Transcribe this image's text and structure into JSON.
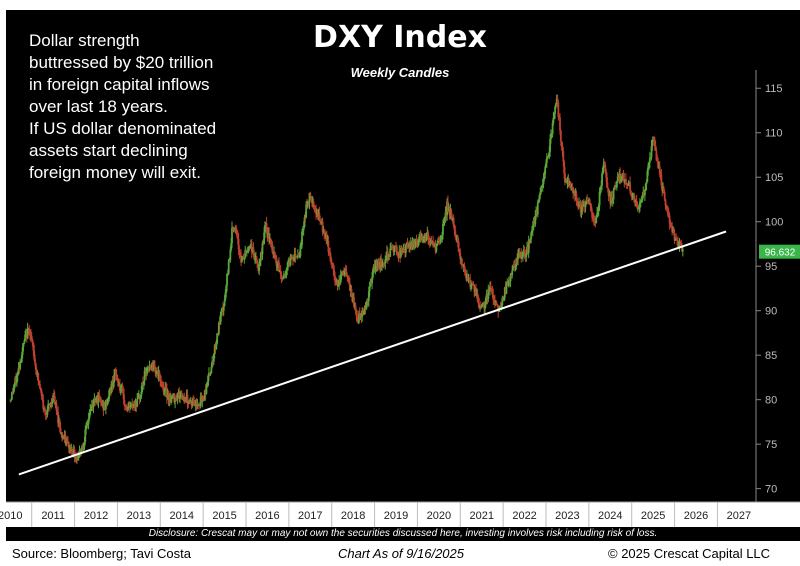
{
  "chart_data": {
    "type": "candlestick",
    "title": "DXY Index",
    "subtitle": "Weekly Candles",
    "x_ticks": [
      "2010",
      "2011",
      "2012",
      "2013",
      "2014",
      "2015",
      "2016",
      "2017",
      "2018",
      "2019",
      "2020",
      "2021",
      "2022",
      "2023",
      "2024",
      "2025",
      "2026",
      "2027"
    ],
    "y_ticks": [
      "70",
      "75",
      "80",
      "85",
      "90",
      "95",
      "100",
      "105",
      "110",
      "115"
    ],
    "xlim": [
      2009.9,
      2027.4
    ],
    "ylim": [
      68.5,
      117.5
    ],
    "last_value": "96.632",
    "price_path": [
      [
        2010.0,
        80.0
      ],
      [
        2010.15,
        82.5
      ],
      [
        2010.35,
        87.0
      ],
      [
        2010.45,
        88.0
      ],
      [
        2010.6,
        83.5
      ],
      [
        2010.8,
        78.5
      ],
      [
        2010.95,
        79.5
      ],
      [
        2011.0,
        80.5
      ],
      [
        2011.2,
        76.0
      ],
      [
        2011.4,
        74.5
      ],
      [
        2011.55,
        73.5
      ],
      [
        2011.7,
        75.0
      ],
      [
        2011.85,
        78.5
      ],
      [
        2012.0,
        80.5
      ],
      [
        2012.2,
        79.0
      ],
      [
        2012.45,
        83.0
      ],
      [
        2012.55,
        81.5
      ],
      [
        2012.7,
        79.0
      ],
      [
        2012.9,
        79.5
      ],
      [
        2013.0,
        80.0
      ],
      [
        2013.15,
        83.0
      ],
      [
        2013.35,
        84.0
      ],
      [
        2013.55,
        81.5
      ],
      [
        2013.75,
        80.0
      ],
      [
        2013.9,
        80.5
      ],
      [
        2014.0,
        80.5
      ],
      [
        2014.3,
        79.5
      ],
      [
        2014.5,
        80.0
      ],
      [
        2014.7,
        84.0
      ],
      [
        2014.9,
        89.0
      ],
      [
        2015.0,
        91.0
      ],
      [
        2015.2,
        100.0
      ],
      [
        2015.4,
        95.5
      ],
      [
        2015.6,
        97.5
      ],
      [
        2015.8,
        94.5
      ],
      [
        2015.95,
        99.5
      ],
      [
        2016.1,
        97.0
      ],
      [
        2016.35,
        93.5
      ],
      [
        2016.55,
        96.0
      ],
      [
        2016.75,
        96.5
      ],
      [
        2016.9,
        101.5
      ],
      [
        2017.0,
        103.0
      ],
      [
        2017.2,
        100.5
      ],
      [
        2017.4,
        97.5
      ],
      [
        2017.6,
        93.0
      ],
      [
        2017.8,
        94.5
      ],
      [
        2017.95,
        92.0
      ],
      [
        2018.1,
        89.0
      ],
      [
        2018.3,
        90.5
      ],
      [
        2018.5,
        95.0
      ],
      [
        2018.7,
        95.5
      ],
      [
        2018.9,
        97.0
      ],
      [
        2019.1,
        96.5
      ],
      [
        2019.4,
        97.5
      ],
      [
        2019.7,
        98.5
      ],
      [
        2019.9,
        97.0
      ],
      [
        2020.05,
        98.0
      ],
      [
        2020.2,
        102.0
      ],
      [
        2020.35,
        99.5
      ],
      [
        2020.55,
        95.0
      ],
      [
        2020.8,
        92.5
      ],
      [
        2021.0,
        90.0
      ],
      [
        2021.2,
        92.5
      ],
      [
        2021.4,
        90.0
      ],
      [
        2021.6,
        93.0
      ],
      [
        2021.85,
        96.0
      ],
      [
        2022.05,
        96.5
      ],
      [
        2022.3,
        101.5
      ],
      [
        2022.55,
        107.5
      ],
      [
        2022.75,
        114.0
      ],
      [
        2022.95,
        104.5
      ],
      [
        2023.1,
        104.0
      ],
      [
        2023.3,
        101.5
      ],
      [
        2023.5,
        102.5
      ],
      [
        2023.65,
        99.5
      ],
      [
        2023.85,
        106.5
      ],
      [
        2024.0,
        102.0
      ],
      [
        2024.2,
        105.5
      ],
      [
        2024.45,
        104.0
      ],
      [
        2024.65,
        101.0
      ],
      [
        2024.8,
        103.5
      ],
      [
        2025.0,
        109.5
      ],
      [
        2025.2,
        104.0
      ],
      [
        2025.4,
        99.5
      ],
      [
        2025.55,
        97.5
      ],
      [
        2025.71,
        96.6
      ]
    ],
    "trendline": [
      [
        2010.2,
        71.6
      ],
      [
        2026.7,
        98.9
      ]
    ],
    "annotation": [
      "Dollar strength",
      "buttressed by $20 trillion",
      "in foreign capital inflows",
      "over last 18 years.",
      "If US dollar denominated",
      "assets start declining",
      "foreign money will exit."
    ],
    "colors": {
      "up": "#5aa83a",
      "down": "#c2402e",
      "background": "#000000",
      "trendline": "#ffffff",
      "last_value_badge": "#39b54a"
    }
  },
  "disclosure": "Disclosure: Crescat may or may not own the securities discussed here, investing involves risk including risk of loss.",
  "footer": {
    "source": "Source: Bloomberg; Tavi Costa",
    "as_of": "Chart As of 9/16/2025",
    "copyright": "© 2025 Crescat Capital LLC"
  }
}
